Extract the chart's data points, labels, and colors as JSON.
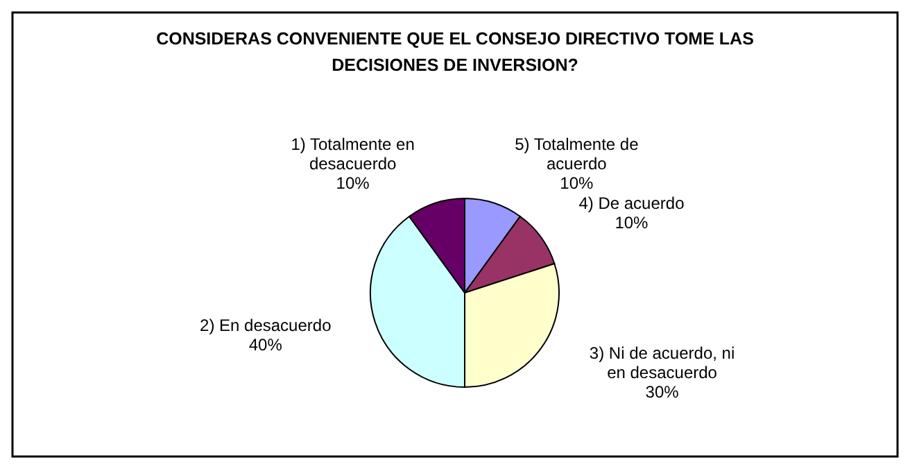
{
  "chart_data": {
    "type": "pie",
    "title": "CONSIDERAS CONVENIENTE QUE EL CONSEJO DIRECTIVO TOME LAS DECISIONES DE INVERSION?",
    "categories": [
      "5) Totalmente de acuerdo",
      "4) De acuerdo",
      "3) Ni de acuerdo, ni en desacuerdo",
      "2) En desacuerdo",
      "1) Totalmente en desacuerdo"
    ],
    "values": [
      10,
      10,
      30,
      40,
      10
    ],
    "colors": [
      "#9999ff",
      "#993366",
      "#ffffcc",
      "#ccffff",
      "#660066"
    ],
    "value_labels": [
      "10%",
      "10%",
      "30%",
      "40%",
      "10%"
    ]
  }
}
